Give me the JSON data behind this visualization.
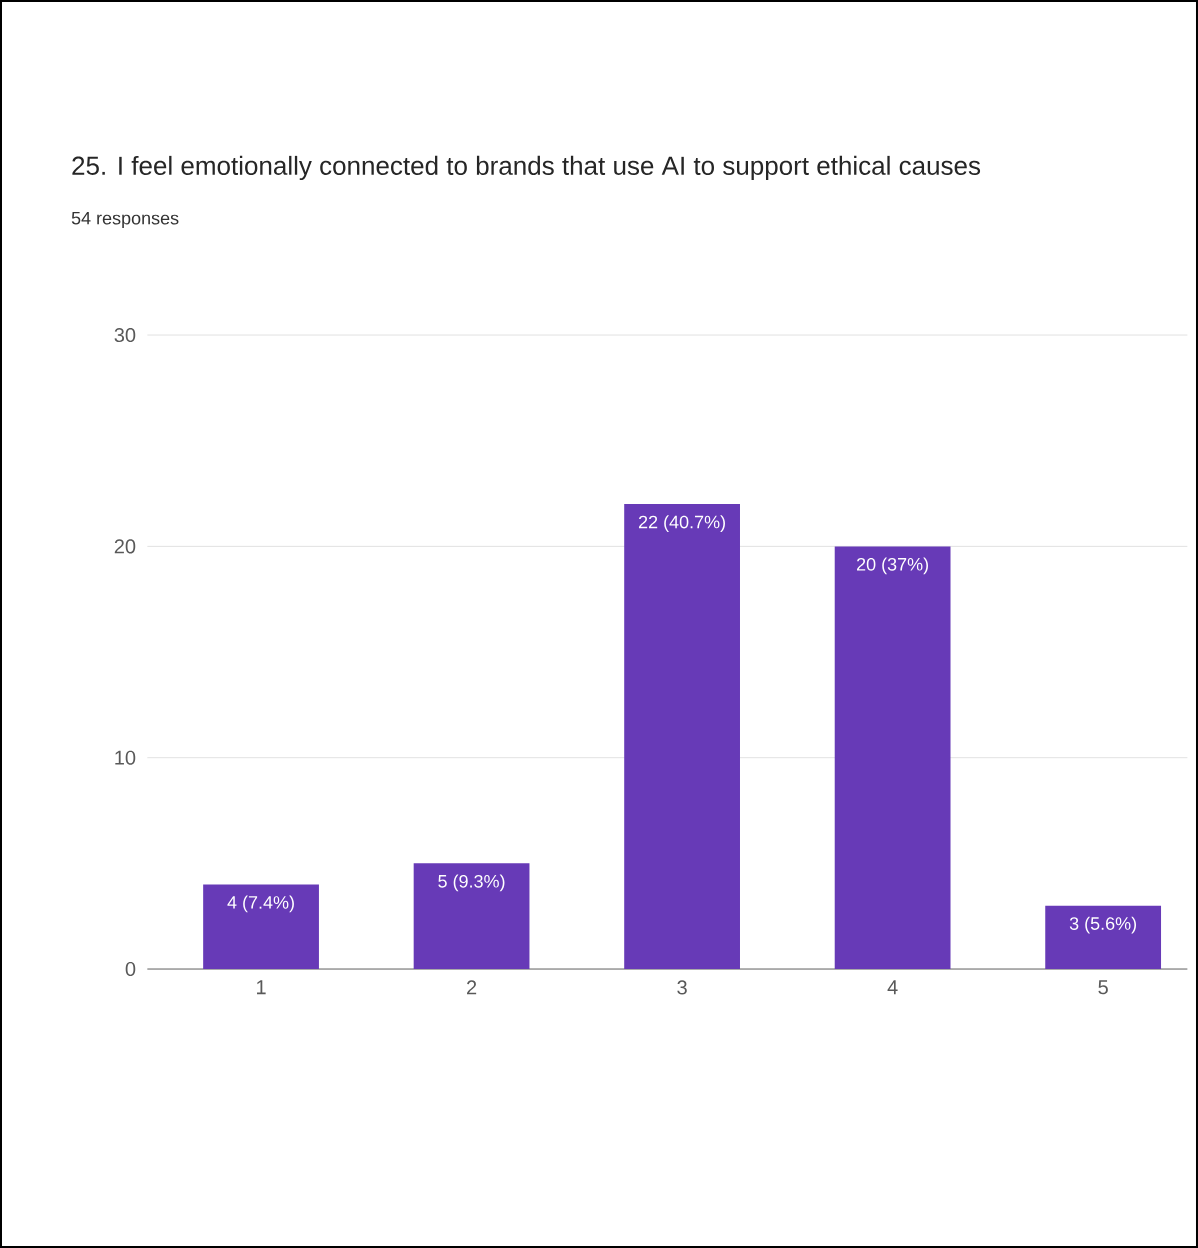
{
  "chart_data": {
    "type": "bar",
    "title": "25. I feel emotionally connected to brands that use AI to support ethical causes",
    "subtitle": "54 responses",
    "categories": [
      "1",
      "2",
      "3",
      "4",
      "5"
    ],
    "values": [
      4,
      5,
      22,
      20,
      3
    ],
    "value_labels": [
      "4 (7.4%)",
      "5 (9.3%)",
      "22 (40.7%)",
      "20 (37%)",
      "3 (5.6%)"
    ],
    "color": "#673ab7",
    "ylim": [
      0,
      30
    ],
    "yticks": [
      0,
      10,
      20,
      30
    ],
    "grid": "y"
  }
}
